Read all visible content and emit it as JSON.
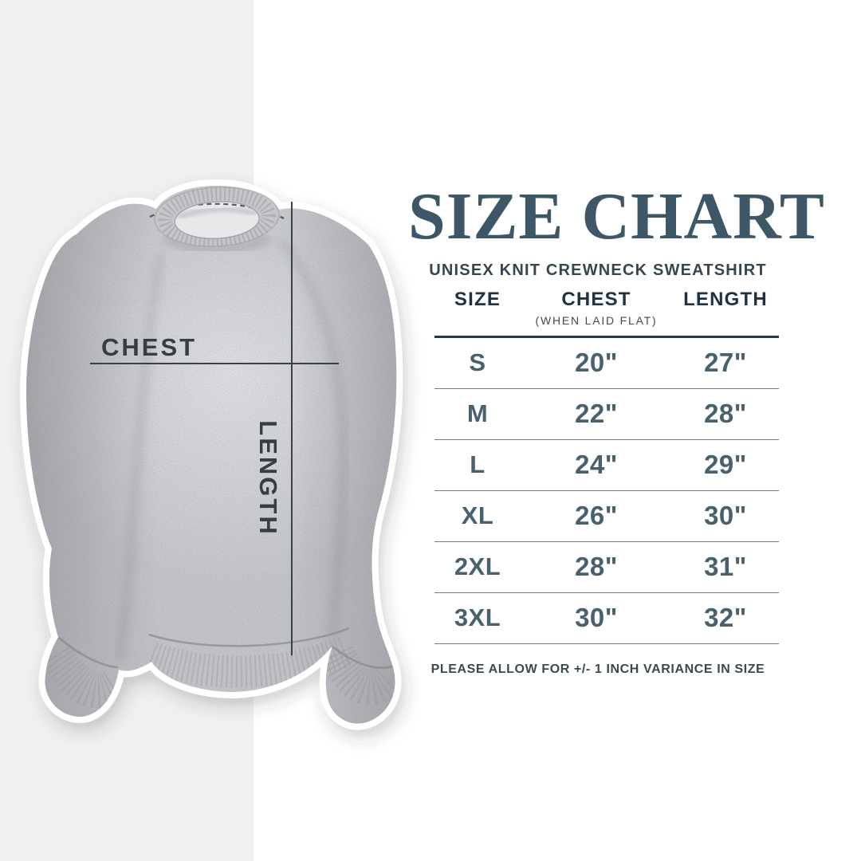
{
  "page": {
    "background": "#ffffff",
    "left_band_color": "#f0f0f1"
  },
  "garment": {
    "description": "heather gray crewneck sweatshirt mockup with white sticker outline",
    "chest_label": "CHEST",
    "length_label": "LENGTH",
    "annotation_color": "#383d43"
  },
  "size_chart": {
    "title": "SIZE CHART",
    "subtitle": "UNISEX KNIT CREWNECK SWEATSHIRT",
    "columns": [
      "SIZE",
      "CHEST",
      "LENGTH"
    ],
    "chest_subnote": "(WHEN LAID FLAT)",
    "rows": [
      {
        "size": "S",
        "chest": "20\"",
        "length": "27\""
      },
      {
        "size": "M",
        "chest": "22\"",
        "length": "28\""
      },
      {
        "size": "L",
        "chest": "24\"",
        "length": "29\""
      },
      {
        "size": "XL",
        "chest": "26\"",
        "length": "30\""
      },
      {
        "size": "2XL",
        "chest": "28\"",
        "length": "31\""
      },
      {
        "size": "3XL",
        "chest": "30\"",
        "length": "32\""
      }
    ],
    "footnote": "PLEASE ALLOW FOR +/- 1 INCH VARIANCE IN SIZE",
    "colors": {
      "title": "#3d5766",
      "subtitle": "#36454e",
      "header": "#1d3343",
      "value": "#48616e",
      "rule_dark": "#223949",
      "rule_light": "#6e7d87",
      "footnote": "#3b4850"
    }
  },
  "chart_data": {
    "type": "table",
    "title": "SIZE CHART",
    "subtitle": "UNISEX KNIT CREWNECK SWEATSHIRT",
    "columns": [
      "SIZE",
      "CHEST (WHEN LAID FLAT)",
      "LENGTH"
    ],
    "rows": [
      [
        "S",
        "20\"",
        "27\""
      ],
      [
        "M",
        "22\"",
        "28\""
      ],
      [
        "L",
        "24\"",
        "29\""
      ],
      [
        "XL",
        "26\"",
        "30\""
      ],
      [
        "2XL",
        "28\"",
        "31\""
      ],
      [
        "3XL",
        "30\"",
        "32\""
      ]
    ],
    "footnote": "PLEASE ALLOW FOR +/- 1 INCH VARIANCE IN SIZE"
  }
}
